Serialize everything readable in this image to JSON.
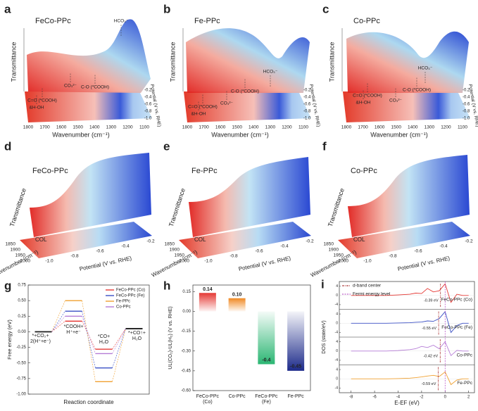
{
  "surface_panels": [
    {
      "letter": "a",
      "title": "FeCo-PPc",
      "annotations": [
        "HCO₃⁻",
        "C=O (*COOH)",
        "&H-OH",
        "CO₃²⁻",
        "C-O (*COOH)"
      ],
      "xlabel": "Wavenumber (cm⁻¹)",
      "ylabel": "Transmittance",
      "zlabel": "Potential (V vs. RHE)",
      "xticks": [
        "1800",
        "1700",
        "1600",
        "1500",
        "1400",
        "1300",
        "1200",
        "1100"
      ],
      "zticks": [
        "-0.2",
        "-0.4",
        "-0.6",
        "-0.8",
        "-1.0"
      ]
    },
    {
      "letter": "b",
      "title": "Fe-PPc",
      "annotations": [
        "HCO₃⁻",
        "C=O (*COOH)",
        "&H-OH",
        "CO₃²⁻",
        "C-O (*COOH)"
      ],
      "xlabel": "Wavenumber (cm⁻¹)",
      "ylabel": "Transmittance",
      "zlabel": "Potential (V vs. RHE)",
      "xticks": [
        "1800",
        "1700",
        "1600",
        "1500",
        "1400",
        "1300",
        "1200",
        "1100"
      ],
      "zticks": [
        "-0.2",
        "-0.4",
        "-0.6",
        "-0.8",
        "-1.0"
      ]
    },
    {
      "letter": "c",
      "title": "Co-PPc",
      "annotations": [
        "HCO₃⁻",
        "C=O (*COOH)",
        "&H-OH",
        "CO₃²⁻",
        "C-O (*COOH)"
      ],
      "xlabel": "Wavenumber (cm⁻¹)",
      "ylabel": "Transmittance",
      "zlabel": "Potential (V vs. RHE)",
      "xticks": [
        "1800",
        "1700",
        "1600",
        "1500",
        "1400",
        "1300",
        "1200",
        "1100"
      ],
      "zticks": [
        "-0.2",
        "-0.4",
        "-0.6",
        "-0.8",
        "-1.0"
      ]
    },
    {
      "letter": "d",
      "title": "FeCo-PPc",
      "annotations": [
        "COL"
      ],
      "xlabel": "Wavenumber (cm⁻¹)",
      "ylabel": "Transmittance",
      "zlabel": "Potential (V vs. RHE)",
      "xticks": [
        "1850",
        "1900",
        "1950",
        "2000"
      ],
      "zticks": [
        "-1.0",
        "-0.8",
        "-0.6",
        "-0.4",
        "-0.2"
      ]
    },
    {
      "letter": "e",
      "title": "Fe-PPc",
      "annotations": [
        "COL"
      ],
      "xlabel": "Wavenumber (cm⁻¹)",
      "ylabel": "Transmittance",
      "zlabel": "Potential (V vs. RHE)",
      "xticks": [
        "1850",
        "1900",
        "1950",
        "2000"
      ],
      "zticks": [
        "-1.0",
        "-0.8",
        "-0.6",
        "-0.4",
        "-0.2"
      ]
    },
    {
      "letter": "f",
      "title": "Co-PPc",
      "annotations": [
        "COL"
      ],
      "xlabel": "Wavenumber (cm⁻¹)",
      "ylabel": "Transmittance",
      "zlabel": "Potential (V vs. RHE)",
      "xticks": [
        "1850",
        "1900",
        "1950",
        "2000"
      ],
      "zticks": [
        "-1.0",
        "-0.8",
        "-0.6",
        "-0.4",
        "-0.2"
      ]
    }
  ],
  "chart_data": [
    {
      "type": "step",
      "letter": "g",
      "xlabel": "Reaction coordinate",
      "ylabel": "Free energy (eV)",
      "categories": [
        "*+CO₂+\n2(H⁺+e⁻)",
        "*COOH+\nH⁺+e⁻",
        "*CO+\nH₂O",
        "*+CO↑+\nH₂O"
      ],
      "ylim": [
        -1.0,
        0.75
      ],
      "yticks": [
        {
          "value": 0.75,
          "label": "0.75"
        },
        {
          "value": 0.5,
          "label": "0.50"
        },
        {
          "value": 0.25,
          "label": "0.25"
        },
        {
          "value": 0,
          "label": "0.00"
        },
        {
          "value": -0.25,
          "label": "-0.25"
        },
        {
          "value": -0.5,
          "label": "-0.50"
        },
        {
          "value": -0.75,
          "label": "-0.75"
        },
        {
          "value": -1.0,
          "label": "-1.00"
        }
      ],
      "endpoint_color": "#222222",
      "series": [
        {
          "name": "FeCo-PPc (Co)",
          "color": "#e53935",
          "values": [
            0,
            0.17,
            -0.28,
            0.05
          ]
        },
        {
          "name": "FeCo-PPc (Fe)",
          "color": "#3a4fc4",
          "values": [
            0,
            0.33,
            -0.58,
            0.05
          ]
        },
        {
          "name": "Fe-PPc",
          "color": "#f0a030",
          "values": [
            0,
            0.5,
            -0.8,
            0.05
          ]
        },
        {
          "name": "Co-PPc",
          "color": "#b57bd6",
          "values": [
            0,
            0.25,
            -0.35,
            0.05
          ]
        }
      ]
    },
    {
      "type": "bar",
      "letter": "h",
      "ylabel": "UL(CO₂)-UL(H₂) (V vs. RHE)",
      "categories": [
        "FeCo-PPc\n(Co)",
        "Co-PPc",
        "FeCo-PPc\n(Fe)",
        "Fe-PPc"
      ],
      "values": [
        0.14,
        0.1,
        -0.4,
        -0.45
      ],
      "value_labels": [
        "0.14",
        "0.10",
        "-0.4",
        "-0.45"
      ],
      "colors": [
        "#e53935",
        "#f08a24",
        "#2bb673",
        "#1c2a8a"
      ],
      "ylim": [
        -0.6,
        0.2
      ],
      "yticks": [
        0.15,
        {
          "value": 0,
          "label": "0.00"
        },
        {
          "value": -0.15,
          "label": "-0.15"
        },
        {
          "value": -0.3,
          "label": "-0.30"
        },
        {
          "value": -0.45,
          "label": "-0.45"
        },
        {
          "value": -0.6,
          "label": "-0.60"
        }
      ]
    },
    {
      "type": "dos",
      "letter": "i",
      "xlabel": "E-EF (eV)",
      "ylabel": "DOS (state/eV)",
      "xlim": [
        -9,
        2.5
      ],
      "xticks": [
        -8,
        -6,
        -4,
        -2,
        0,
        2
      ],
      "ylim": [
        -6,
        6
      ],
      "yticks": [
        4,
        0,
        -4
      ],
      "legend": [
        "d-band center",
        "Fermi energy level"
      ],
      "fermi_level": 0,
      "x": [
        -8,
        -7,
        -6,
        -5,
        -4,
        -3,
        -2.5,
        -2,
        -1.5,
        -1,
        -0.5,
        0,
        0.5,
        1,
        1.5,
        2
      ],
      "series": [
        {
          "name": "FeCo-PPc (Co)",
          "color": "#e53935",
          "values": [
            0,
            0,
            0,
            0,
            0.2,
            0.5,
            1,
            0.8,
            3,
            1.5,
            2,
            5,
            -3,
            0.5,
            0,
            0
          ],
          "d_band": -0.39,
          "d_band_label": "-0.39 eV"
        },
        {
          "name": "FeCo-PPc (Fe)",
          "color": "#3a4fc4",
          "values": [
            0,
            0,
            0,
            0,
            0.1,
            0.2,
            0.4,
            0.5,
            1,
            0.8,
            2,
            5,
            -4,
            -1,
            0,
            0
          ],
          "d_band": -0.55,
          "d_band_label": "-0.55 eV"
        },
        {
          "name": "Co-PPc",
          "color": "#b57bd6",
          "values": [
            0,
            0,
            0,
            0,
            0.2,
            0.6,
            1,
            2,
            1.5,
            2.5,
            1,
            4,
            -2,
            0.3,
            0,
            0
          ],
          "d_band": -0.42,
          "d_band_label": "-0.42 eV"
        },
        {
          "name": "Fe-PPc",
          "color": "#f0a030",
          "values": [
            0,
            0,
            0,
            0,
            0.1,
            0.3,
            0.5,
            0.8,
            1.2,
            1.5,
            1,
            3,
            -2.5,
            -0.5,
            0,
            0
          ],
          "d_band": -0.59,
          "d_band_label": "-0.59 eV"
        }
      ]
    }
  ]
}
